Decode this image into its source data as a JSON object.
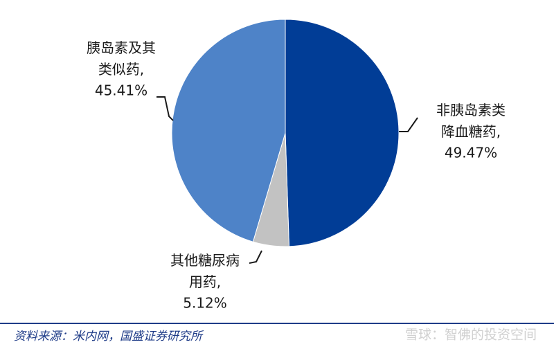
{
  "chart_data": {
    "type": "pie",
    "categories": [
      "非胰岛素类降血糖药,",
      "其他糖尿病用药,",
      "胰岛素及其类似药,"
    ],
    "values": [
      49.47,
      5.12,
      45.41
    ],
    "value_labels": [
      "49.47%",
      "5.12%",
      "45.41%"
    ],
    "colors": [
      "#013d96",
      "#c2c2c2",
      "#4e83c8"
    ],
    "source": "资料来源：米内网，国盛证券研究所",
    "watermark": "雪球：智佛的投资空间"
  }
}
